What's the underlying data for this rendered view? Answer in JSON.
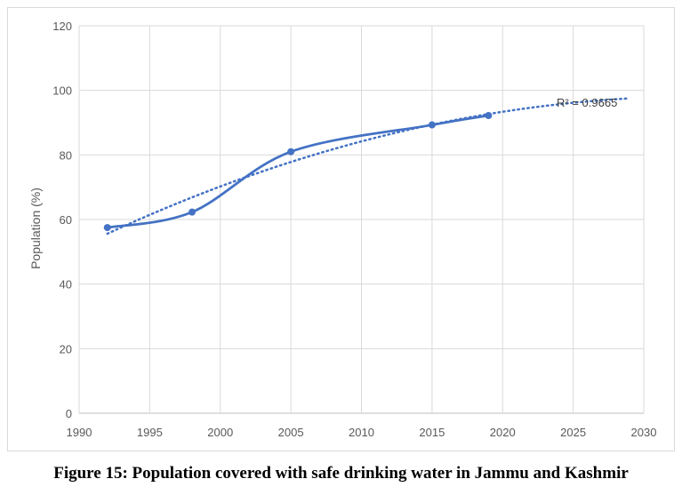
{
  "caption": "Figure 15: Population covered with safe drinking water in Jammu and Kashmir",
  "chart_data": {
    "type": "line",
    "title": "",
    "xlabel": "",
    "ylabel": "Population (%)",
    "xlim": [
      1990,
      2030
    ],
    "ylim": [
      0,
      120
    ],
    "xticks": [
      1990,
      1995,
      2000,
      2005,
      2010,
      2015,
      2020,
      2025,
      2030
    ],
    "yticks": [
      0,
      20,
      40,
      60,
      80,
      100,
      120
    ],
    "grid": true,
    "legend": "none",
    "series": [
      {
        "x": [
          1992,
          1998,
          2005,
          2015,
          2019
        ],
        "values": [
          57.5,
          62.3,
          81.0,
          89.3,
          92.2
        ],
        "color": "#4472c4",
        "style": "smooth-line-with-markers"
      }
    ],
    "trendline": {
      "type": "polynomial",
      "x_range": [
        1992,
        2029
      ],
      "color": "#4472c4",
      "style": "dotted",
      "label": "R² = 0.9665"
    }
  }
}
